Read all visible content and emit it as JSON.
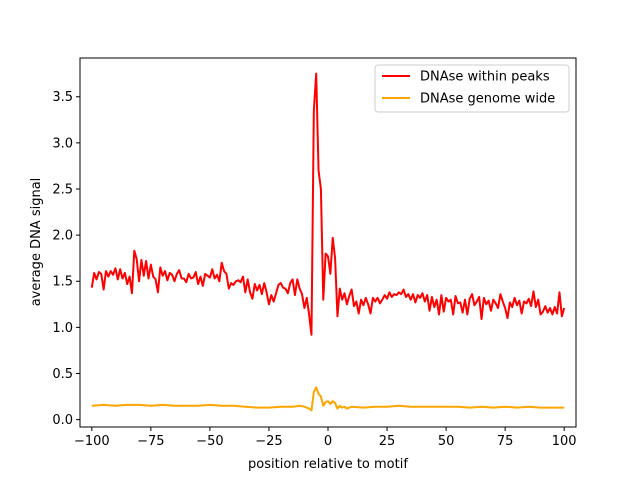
{
  "chart_data": {
    "type": "line",
    "title": "",
    "xlabel": "position relative to motif",
    "ylabel": "average DNA signal",
    "xlim": [
      -105,
      105
    ],
    "ylim": [
      -0.08,
      3.92
    ],
    "xticks": [
      -100,
      -75,
      -50,
      -25,
      0,
      25,
      50,
      75,
      100
    ],
    "xtick_labels": [
      "−100",
      "−75",
      "−50",
      "−25",
      "0",
      "25",
      "50",
      "75",
      "100"
    ],
    "yticks": [
      0.0,
      0.5,
      1.0,
      1.5,
      2.0,
      2.5,
      3.0,
      3.5
    ],
    "ytick_labels": [
      "0.0",
      "0.5",
      "1.0",
      "1.5",
      "2.0",
      "2.5",
      "3.0",
      "3.5"
    ],
    "grid": false,
    "legend_position": "upper right",
    "series": [
      {
        "name": "DNAse within peaks",
        "color": "#ff0000",
        "points": [
          [
            -100,
            1.43
          ],
          [
            -99,
            1.59
          ],
          [
            -98,
            1.52
          ],
          [
            -97,
            1.6
          ],
          [
            -96,
            1.58
          ],
          [
            -95,
            1.41
          ],
          [
            -94,
            1.61
          ],
          [
            -93,
            1.55
          ],
          [
            -92,
            1.61
          ],
          [
            -91,
            1.57
          ],
          [
            -90,
            1.64
          ],
          [
            -89,
            1.52
          ],
          [
            -88,
            1.63
          ],
          [
            -87,
            1.53
          ],
          [
            -86,
            1.59
          ],
          [
            -85,
            1.47
          ],
          [
            -84,
            1.55
          ],
          [
            -83,
            1.37
          ],
          [
            -82,
            1.83
          ],
          [
            -81,
            1.74
          ],
          [
            -80,
            1.5
          ],
          [
            -79,
            1.73
          ],
          [
            -78,
            1.56
          ],
          [
            -77,
            1.72
          ],
          [
            -76,
            1.53
          ],
          [
            -75,
            1.68
          ],
          [
            -74,
            1.55
          ],
          [
            -73,
            1.52
          ],
          [
            -72,
            1.38
          ],
          [
            -71,
            1.65
          ],
          [
            -70,
            1.56
          ],
          [
            -69,
            1.61
          ],
          [
            -68,
            1.51
          ],
          [
            -67,
            1.59
          ],
          [
            -66,
            1.57
          ],
          [
            -65,
            1.5
          ],
          [
            -64,
            1.58
          ],
          [
            -63,
            1.62
          ],
          [
            -62,
            1.53
          ],
          [
            -61,
            1.53
          ],
          [
            -60,
            1.49
          ],
          [
            -59,
            1.58
          ],
          [
            -58,
            1.53
          ],
          [
            -57,
            1.54
          ],
          [
            -56,
            1.6
          ],
          [
            -55,
            1.47
          ],
          [
            -54,
            1.55
          ],
          [
            -53,
            1.45
          ],
          [
            -52,
            1.58
          ],
          [
            -51,
            1.56
          ],
          [
            -50,
            1.54
          ],
          [
            -49,
            1.63
          ],
          [
            -48,
            1.53
          ],
          [
            -47,
            1.57
          ],
          [
            -46,
            1.5
          ],
          [
            -45,
            1.7
          ],
          [
            -44,
            1.61
          ],
          [
            -43,
            1.58
          ],
          [
            -42,
            1.42
          ],
          [
            -41,
            1.48
          ],
          [
            -40,
            1.46
          ],
          [
            -39,
            1.5
          ],
          [
            -38,
            1.51
          ],
          [
            -37,
            1.49
          ],
          [
            -36,
            1.55
          ],
          [
            -35,
            1.38
          ],
          [
            -34,
            1.52
          ],
          [
            -33,
            1.38
          ],
          [
            -32,
            1.31
          ],
          [
            -31,
            1.47
          ],
          [
            -30,
            1.4
          ],
          [
            -29,
            1.46
          ],
          [
            -28,
            1.36
          ],
          [
            -27,
            1.48
          ],
          [
            -26,
            1.38
          ],
          [
            -25,
            1.25
          ],
          [
            -24,
            1.35
          ],
          [
            -23,
            1.28
          ],
          [
            -22,
            1.37
          ],
          [
            -21,
            1.46
          ],
          [
            -20,
            1.48
          ],
          [
            -19,
            1.43
          ],
          [
            -18,
            1.42
          ],
          [
            -17,
            1.37
          ],
          [
            -16,
            1.48
          ],
          [
            -15,
            1.52
          ],
          [
            -14,
            1.35
          ],
          [
            -13,
            1.52
          ],
          [
            -12,
            1.42
          ],
          [
            -11,
            1.36
          ],
          [
            -10,
            1.21
          ],
          [
            -9,
            1.32
          ],
          [
            -8,
            1.14
          ],
          [
            -7,
            0.92
          ],
          [
            -6,
            3.35
          ],
          [
            -5,
            3.75
          ],
          [
            -4,
            2.7
          ],
          [
            -3,
            2.5
          ],
          [
            -2,
            1.3
          ],
          [
            -1,
            1.8
          ],
          [
            0,
            1.77
          ],
          [
            1,
            1.58
          ],
          [
            2,
            1.97
          ],
          [
            3,
            1.75
          ],
          [
            4,
            1.12
          ],
          [
            5,
            1.42
          ],
          [
            6,
            1.3
          ],
          [
            7,
            1.37
          ],
          [
            8,
            1.25
          ],
          [
            9,
            1.34
          ],
          [
            10,
            1.41
          ],
          [
            11,
            1.23
          ],
          [
            12,
            1.28
          ],
          [
            13,
            1.15
          ],
          [
            14,
            1.3
          ],
          [
            15,
            1.24
          ],
          [
            16,
            1.32
          ],
          [
            17,
            1.25
          ],
          [
            18,
            1.15
          ],
          [
            19,
            1.32
          ],
          [
            20,
            1.28
          ],
          [
            21,
            1.32
          ],
          [
            22,
            1.26
          ],
          [
            23,
            1.3
          ],
          [
            24,
            1.35
          ],
          [
            25,
            1.31
          ],
          [
            26,
            1.38
          ],
          [
            27,
            1.33
          ],
          [
            28,
            1.36
          ],
          [
            29,
            1.35
          ],
          [
            30,
            1.38
          ],
          [
            31,
            1.36
          ],
          [
            32,
            1.41
          ],
          [
            33,
            1.33
          ],
          [
            34,
            1.36
          ],
          [
            35,
            1.3
          ],
          [
            36,
            1.36
          ],
          [
            37,
            1.27
          ],
          [
            38,
            1.35
          ],
          [
            39,
            1.32
          ],
          [
            40,
            1.37
          ],
          [
            41,
            1.28
          ],
          [
            42,
            1.35
          ],
          [
            43,
            1.18
          ],
          [
            44,
            1.33
          ],
          [
            45,
            1.22
          ],
          [
            46,
            1.3
          ],
          [
            47,
            1.14
          ],
          [
            48,
            1.35
          ],
          [
            49,
            1.17
          ],
          [
            50,
            1.32
          ],
          [
            51,
            1.28
          ],
          [
            52,
            1.3
          ],
          [
            53,
            1.14
          ],
          [
            54,
            1.34
          ],
          [
            55,
            1.26
          ],
          [
            56,
            1.27
          ],
          [
            57,
            1.16
          ],
          [
            58,
            1.3
          ],
          [
            59,
            1.14
          ],
          [
            60,
            1.31
          ],
          [
            61,
            1.36
          ],
          [
            62,
            1.24
          ],
          [
            63,
            1.28
          ],
          [
            64,
            1.33
          ],
          [
            65,
            1.09
          ],
          [
            66,
            1.32
          ],
          [
            67,
            1.25
          ],
          [
            68,
            1.29
          ],
          [
            69,
            1.18
          ],
          [
            70,
            1.3
          ],
          [
            71,
            1.26
          ],
          [
            72,
            1.21
          ],
          [
            73,
            1.36
          ],
          [
            74,
            1.28
          ],
          [
            75,
            1.21
          ],
          [
            76,
            1.1
          ],
          [
            77,
            1.27
          ],
          [
            78,
            1.22
          ],
          [
            79,
            1.32
          ],
          [
            80,
            1.24
          ],
          [
            81,
            1.29
          ],
          [
            82,
            1.15
          ],
          [
            83,
            1.28
          ],
          [
            84,
            1.26
          ],
          [
            85,
            1.31
          ],
          [
            86,
            1.23
          ],
          [
            87,
            1.39
          ],
          [
            88,
            1.22
          ],
          [
            89,
            1.3
          ],
          [
            90,
            1.14
          ],
          [
            91,
            1.17
          ],
          [
            92,
            1.23
          ],
          [
            93,
            1.16
          ],
          [
            94,
            1.21
          ],
          [
            95,
            1.14
          ],
          [
            96,
            1.22
          ],
          [
            97,
            1.15
          ],
          [
            98,
            1.38
          ],
          [
            99,
            1.12
          ],
          [
            100,
            1.21
          ]
        ]
      },
      {
        "name": "DNAse genome wide",
        "color": "#ffa500",
        "points": [
          [
            -100,
            0.15
          ],
          [
            -95,
            0.16
          ],
          [
            -90,
            0.15
          ],
          [
            -85,
            0.16
          ],
          [
            -80,
            0.16
          ],
          [
            -75,
            0.15
          ],
          [
            -70,
            0.16
          ],
          [
            -65,
            0.15
          ],
          [
            -60,
            0.15
          ],
          [
            -55,
            0.15
          ],
          [
            -50,
            0.16
          ],
          [
            -45,
            0.15
          ],
          [
            -40,
            0.15
          ],
          [
            -35,
            0.14
          ],
          [
            -30,
            0.13
          ],
          [
            -25,
            0.13
          ],
          [
            -20,
            0.14
          ],
          [
            -15,
            0.14
          ],
          [
            -12,
            0.15
          ],
          [
            -10,
            0.14
          ],
          [
            -8,
            0.12
          ],
          [
            -7,
            0.1
          ],
          [
            -6,
            0.3
          ],
          [
            -5,
            0.35
          ],
          [
            -4,
            0.28
          ],
          [
            -3,
            0.25
          ],
          [
            -2,
            0.15
          ],
          [
            -1,
            0.19
          ],
          [
            0,
            0.2
          ],
          [
            1,
            0.17
          ],
          [
            2,
            0.2
          ],
          [
            3,
            0.18
          ],
          [
            4,
            0.12
          ],
          [
            5,
            0.15
          ],
          [
            6,
            0.13
          ],
          [
            7,
            0.14
          ],
          [
            8,
            0.12
          ],
          [
            10,
            0.14
          ],
          [
            15,
            0.13
          ],
          [
            20,
            0.14
          ],
          [
            25,
            0.14
          ],
          [
            30,
            0.15
          ],
          [
            35,
            0.14
          ],
          [
            40,
            0.14
          ],
          [
            45,
            0.14
          ],
          [
            50,
            0.14
          ],
          [
            55,
            0.14
          ],
          [
            60,
            0.13
          ],
          [
            65,
            0.14
          ],
          [
            70,
            0.13
          ],
          [
            75,
            0.14
          ],
          [
            80,
            0.13
          ],
          [
            85,
            0.14
          ],
          [
            90,
            0.13
          ],
          [
            95,
            0.13
          ],
          [
            100,
            0.13
          ]
        ]
      }
    ]
  }
}
